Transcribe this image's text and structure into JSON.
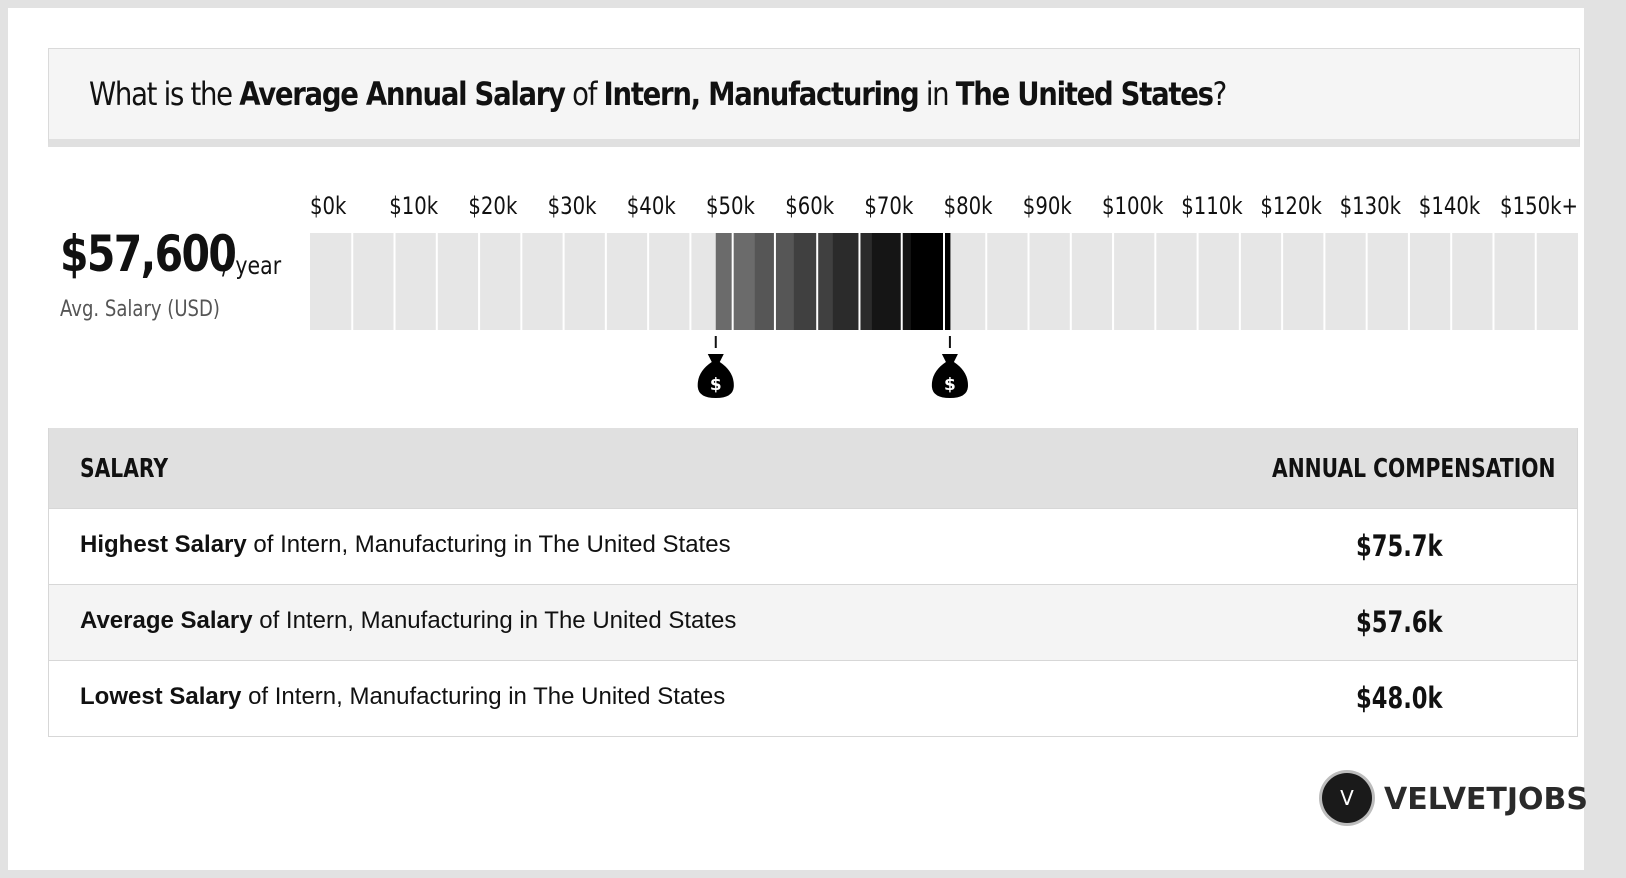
{
  "question": {
    "p1": "What is the ",
    "b1": "Average Annual Salary",
    "p2": " of ",
    "b2": "Intern, Manufacturing",
    "p3": " in ",
    "b3": "The United States",
    "p4": "?"
  },
  "average": {
    "value": "$57,600",
    "unit": "/ year",
    "label": "Avg. Salary (USD)"
  },
  "chart_data": {
    "type": "bar",
    "x_ticks": [
      "$0k",
      "$10k",
      "$20k",
      "$30k",
      "$40k",
      "$50k",
      "$60k",
      "$70k",
      "$80k",
      "$90k",
      "$100k",
      "$110k",
      "$120k",
      "$130k",
      "$140k",
      "$150k+"
    ],
    "xlim": [
      0,
      150
    ],
    "units": "thousand USD",
    "range": {
      "low": 48.0,
      "high": 75.7,
      "average": 57.6
    },
    "low_marker": "$",
    "high_marker": "$",
    "colors": {
      "band_bg": "#e6e6e6",
      "band_light": "#6b6b6b",
      "band_dark": "#000000",
      "divider": "#ffffff"
    }
  },
  "table": {
    "header_left": "SALARY",
    "header_right": "ANNUAL COMPENSATION",
    "rows": [
      {
        "bold": "Highest Salary",
        "rest": " of Intern, Manufacturing in The United States",
        "amount": "$75.7k"
      },
      {
        "bold": "Average Salary",
        "rest": " of Intern, Manufacturing in The United States",
        "amount": "$57.6k"
      },
      {
        "bold": "Lowest Salary",
        "rest": " of Intern, Manufacturing in The United States",
        "amount": "$48.0k"
      }
    ]
  },
  "brand": {
    "logo_letter": "V",
    "name": "VELVETJOBS"
  }
}
